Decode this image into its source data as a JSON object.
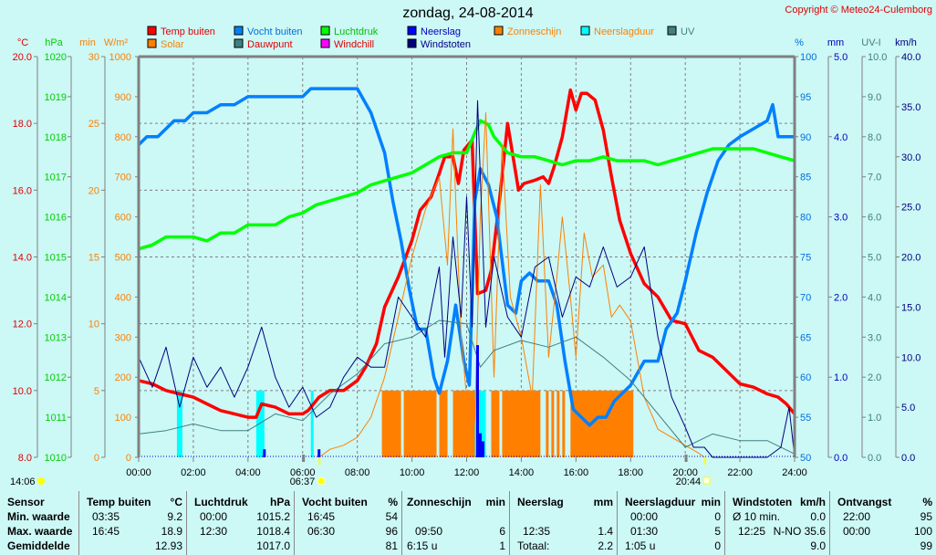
{
  "title": "zondag, 24-08-2014",
  "copyright": "Copyright © Meteo24-Culemborg",
  "legend": [
    {
      "label": "Temp buiten",
      "color": "#ff0000",
      "text_color": "#e00000"
    },
    {
      "label": "Solar",
      "color": "#ff8000",
      "text_color": "#ff8000"
    },
    {
      "label": "Vocht buiten",
      "color": "#0080ff",
      "text_color": "#0070e0"
    },
    {
      "label": "Dauwpunt",
      "color": "#408080",
      "text_color": "#e00000"
    },
    {
      "label": "Luchtdruk",
      "color": "#00ff00",
      "text_color": "#00c000"
    },
    {
      "label": "Windchill",
      "color": "#ff00ff",
      "text_color": "#e00000"
    },
    {
      "label": "Neerslag",
      "color": "#0000ff",
      "text_color": "#0000c0"
    },
    {
      "label": "Windstoten",
      "color": "#000080",
      "text_color": "#000080"
    },
    {
      "label": "Zonneschijn",
      "color": "#ff8000",
      "text_color": "#ff8000"
    },
    {
      "label": "Neerslagduur",
      "color": "#00ffff",
      "text_color": "#ff8000"
    },
    {
      "label": "UV",
      "color": "#408080",
      "text_color": "#408080"
    }
  ],
  "axes": {
    "temp": {
      "unit": "°C",
      "color": "#e00000",
      "ticks": [
        "20.0",
        "18.0",
        "16.0",
        "14.0",
        "12.0",
        "10.0",
        "8.0"
      ]
    },
    "pressure": {
      "unit": "hPa",
      "color": "#00d000",
      "ticks": [
        "1020",
        "1019",
        "1018",
        "1017",
        "1016",
        "1015",
        "1014",
        "1013",
        "1012",
        "1011",
        "1010"
      ]
    },
    "minutes": {
      "unit": "min",
      "color": "#ff8000",
      "ticks": [
        "30",
        "25",
        "20",
        "15",
        "10",
        "5",
        "0"
      ]
    },
    "solar": {
      "unit": "W/m²",
      "color": "#ff8000",
      "ticks": [
        "1000",
        "900",
        "800",
        "700",
        "600",
        "500",
        "400",
        "300",
        "200",
        "100",
        "0"
      ]
    },
    "humidity": {
      "unit": "%",
      "color": "#0070e0",
      "ticks": [
        "100",
        "95",
        "90",
        "85",
        "80",
        "75",
        "70",
        "65",
        "60",
        "55",
        "50"
      ]
    },
    "rain": {
      "unit": "mm",
      "color": "#0000c0",
      "ticks": [
        "5.0",
        "4.0",
        "3.0",
        "2.0",
        "1.0",
        "0.0"
      ]
    },
    "uv": {
      "unit": "UV-I",
      "color": "#408080",
      "ticks": [
        "10.0",
        "9.0",
        "8.0",
        "7.0",
        "6.0",
        "5.0",
        "4.0",
        "3.0",
        "2.0",
        "1.0",
        "0.0"
      ]
    },
    "wind": {
      "unit": "km/h",
      "color": "#000080",
      "ticks": [
        "40.0",
        "35.0",
        "30.0",
        "25.0",
        "20.0",
        "15.0",
        "10.0",
        "5.0",
        "0.0"
      ]
    },
    "time_ticks": [
      "00:00",
      "02:00",
      "04:00",
      "06:00",
      "08:00",
      "10:00",
      "12:00",
      "14:00",
      "16:00",
      "18:00",
      "20:00",
      "22:00",
      "24:00"
    ]
  },
  "daylight": {
    "daylength": "14:06",
    "sunrise": "06:37",
    "sunset": "20:44"
  },
  "chart_data": {
    "type": "line",
    "title": "zondag, 24-08-2014",
    "xlabel": "",
    "ylabel": "",
    "xlim": [
      0,
      24
    ],
    "grid": true,
    "series": [
      {
        "name": "Temp buiten",
        "unit": "°C",
        "ylim": [
          8,
          20
        ],
        "x": [
          0,
          0.5,
          1,
          1.5,
          2,
          2.5,
          3,
          3.5,
          4,
          4.3,
          4.5,
          5,
          5.5,
          6,
          6.2,
          6.6,
          7,
          7.5,
          8,
          8.3,
          8.7,
          9,
          9.5,
          10,
          10.3,
          10.7,
          11,
          11.2,
          11.5,
          11.7,
          11.9,
          12.2,
          12.4,
          12.7,
          12.9,
          13.2,
          13.5,
          13.9,
          14.1,
          14.5,
          14.8,
          15,
          15.2,
          15.5,
          15.8,
          16,
          16.2,
          16.4,
          16.7,
          17,
          17.3,
          17.6,
          18,
          18.5,
          19,
          19.5,
          20,
          20.5,
          21,
          21.5,
          22,
          22.5,
          23,
          23.4,
          23.7,
          24
        ],
        "y": [
          10.3,
          10.2,
          10.0,
          9.9,
          9.8,
          9.6,
          9.4,
          9.3,
          9.2,
          9.2,
          9.6,
          9.5,
          9.3,
          9.3,
          9.4,
          9.8,
          10.0,
          10.0,
          10.3,
          10.7,
          11.4,
          12.5,
          13.4,
          14.5,
          15.4,
          15.8,
          16.5,
          17.0,
          17.0,
          16.2,
          17.2,
          17.5,
          12.9,
          13.0,
          13.6,
          15.7,
          18.0,
          16.0,
          16.2,
          16.3,
          16.4,
          16.2,
          16.7,
          17.6,
          19.0,
          18.4,
          18.9,
          18.9,
          18.7,
          17.8,
          16.4,
          15.1,
          14.1,
          13.2,
          12.8,
          12.1,
          12.0,
          11.2,
          11.0,
          10.6,
          10.2,
          10.1,
          9.9,
          9.8,
          9.6,
          9.3
        ]
      },
      {
        "name": "Vocht buiten",
        "unit": "%",
        "ylim": [
          50,
          100
        ],
        "x": [
          0,
          0.3,
          0.7,
          1,
          1.3,
          1.7,
          2,
          2.5,
          3,
          3.5,
          4,
          5,
          6,
          6.3,
          6.7,
          7,
          8,
          8.5,
          9,
          9.3,
          9.6,
          9.9,
          10.2,
          10.5,
          10.8,
          11,
          11.3,
          11.6,
          11.9,
          12.1,
          12.3,
          12.5,
          12.8,
          13.1,
          13.5,
          13.8,
          14,
          14.3,
          14.6,
          15,
          15.3,
          15.6,
          15.9,
          16.2,
          16.5,
          16.8,
          17.1,
          17.4,
          17.7,
          18.0,
          18.5,
          19,
          19.3,
          19.7,
          20,
          20.4,
          20.8,
          21.2,
          21.6,
          22,
          22.5,
          23,
          23.2,
          23.4,
          24
        ],
        "y": [
          89,
          90,
          90,
          91,
          92,
          92,
          93,
          93,
          94,
          94,
          95,
          95,
          95,
          96,
          96,
          96,
          96,
          93,
          88,
          82,
          77,
          71,
          66,
          66,
          60,
          58,
          62,
          69,
          62,
          59,
          82,
          86,
          84,
          80,
          69,
          68,
          72,
          73,
          72,
          72,
          69,
          62,
          56,
          55,
          54,
          55,
          55,
          57,
          58,
          59,
          62,
          62,
          66,
          68,
          72,
          78,
          83,
          87,
          89,
          90,
          91,
          92,
          94,
          90,
          90
        ]
      },
      {
        "name": "Luchtdruk",
        "unit": "hPa",
        "ylim": [
          1010,
          1020
        ],
        "x": [
          0,
          0.5,
          1,
          1.5,
          2,
          2.5,
          3,
          3.5,
          4,
          4.5,
          5,
          5.5,
          6,
          6.5,
          7,
          7.5,
          8,
          8.5,
          9,
          9.5,
          10,
          10.5,
          11,
          11.5,
          12,
          12.3,
          12.5,
          12.8,
          13,
          13.5,
          14,
          14.5,
          15,
          15.5,
          16,
          16.5,
          17,
          17.5,
          18,
          18.5,
          19,
          19.5,
          20,
          20.5,
          21,
          21.5,
          22,
          22.5,
          23,
          23.5,
          24
        ],
        "y": [
          1015.2,
          1015.3,
          1015.5,
          1015.5,
          1015.5,
          1015.4,
          1015.6,
          1015.6,
          1015.8,
          1015.8,
          1015.8,
          1016.0,
          1016.1,
          1016.3,
          1016.4,
          1016.5,
          1016.6,
          1016.8,
          1016.9,
          1017.0,
          1017.1,
          1017.3,
          1017.5,
          1017.6,
          1017.6,
          1018.1,
          1018.4,
          1018.3,
          1018.0,
          1017.6,
          1017.5,
          1017.5,
          1017.4,
          1017.3,
          1017.4,
          1017.4,
          1017.5,
          1017.4,
          1017.4,
          1017.4,
          1017.3,
          1017.4,
          1017.5,
          1017.6,
          1017.7,
          1017.7,
          1017.7,
          1017.7,
          1017.6,
          1017.5,
          1017.4
        ]
      },
      {
        "name": "Solar",
        "unit": "W/m²",
        "ylim": [
          0,
          1000
        ],
        "x": [
          6.6,
          7,
          7.5,
          8,
          8.5,
          9,
          9.5,
          10,
          10.5,
          11,
          11.3,
          11.5,
          11.8,
          12,
          12.3,
          12.5,
          12.7,
          13,
          13.3,
          13.6,
          14,
          14.4,
          14.7,
          15,
          15.3,
          15.5,
          15.8,
          16,
          16.3,
          16.6,
          17,
          17.3,
          17.6,
          18,
          18.5,
          19,
          19.5,
          20,
          20.5,
          20.7
        ],
        "y": [
          0,
          20,
          30,
          50,
          100,
          200,
          350,
          500,
          620,
          700,
          480,
          820,
          300,
          150,
          90,
          600,
          860,
          200,
          780,
          400,
          300,
          150,
          680,
          250,
          450,
          600,
          400,
          250,
          560,
          450,
          480,
          350,
          380,
          340,
          150,
          70,
          50,
          30,
          10,
          0
        ]
      },
      {
        "name": "Dauwpunt",
        "unit": "°C",
        "ylim": [
          8,
          20
        ],
        "x": [
          0,
          1,
          2,
          3,
          4,
          5,
          6,
          7,
          8,
          9,
          10,
          11,
          12,
          12.5,
          13,
          14,
          15,
          16,
          17,
          18,
          19,
          20,
          21,
          22,
          23,
          24
        ],
        "y": [
          8.7,
          8.8,
          9.0,
          8.8,
          8.8,
          9.3,
          9.1,
          9.9,
          10.5,
          11.4,
          11.6,
          12.1,
          12.0,
          10.7,
          11.2,
          11.5,
          11.3,
          11.6,
          11.0,
          10.3,
          9.3,
          8.3,
          8.7,
          8.5,
          8.5,
          8.1
        ]
      },
      {
        "name": "Windstoten",
        "unit": "km/h",
        "ylim": [
          0,
          40
        ],
        "x": [
          0,
          0.5,
          1,
          1.5,
          2,
          2.5,
          3,
          3.5,
          4,
          4.5,
          5,
          5.5,
          6,
          6.5,
          7,
          7.5,
          8,
          8.5,
          9,
          9.5,
          10,
          10.5,
          11,
          11.2,
          11.5,
          11.8,
          12,
          12.2,
          12.4,
          12.7,
          13,
          13.5,
          14,
          14.5,
          15,
          15.5,
          16,
          16.5,
          17,
          17.5,
          18,
          18.5,
          19,
          19.5,
          20,
          20.3,
          20.7,
          21,
          21.5,
          22,
          22.5,
          23,
          23.5,
          23.8,
          24
        ],
        "y": [
          10,
          7,
          11,
          5,
          10,
          7,
          9,
          6,
          9,
          13,
          8,
          5,
          7,
          4,
          5,
          8,
          10,
          9,
          9,
          16,
          14,
          12,
          19,
          10,
          22,
          14,
          26,
          13,
          35.6,
          13,
          20,
          14,
          12,
          19,
          20,
          14,
          18,
          17,
          21,
          17,
          18,
          21,
          12,
          6,
          3,
          1,
          1,
          0,
          0,
          0,
          0,
          0,
          1,
          5,
          0
        ]
      },
      {
        "name": "Neerslag",
        "unit": "mm",
        "ylim": [
          0,
          5
        ],
        "x": [
          4.6,
          6.6,
          12.4,
          12.5,
          12.6
        ],
        "y": [
          0.1,
          0.1,
          1.4,
          0.3,
          0.2
        ]
      }
    ],
    "bars": [
      {
        "name": "Zonneschijn",
        "unit": "min",
        "ylim": [
          0,
          30
        ],
        "intervals": [
          [
            8.9,
            9.6
          ],
          [
            9.7,
            10.9
          ],
          [
            11.0,
            11.3
          ],
          [
            11.5,
            12.3
          ],
          [
            12.9,
            13.2
          ],
          [
            13.3,
            14.7
          ],
          [
            14.9,
            15.0
          ],
          [
            15.1,
            15.2
          ],
          [
            15.3,
            15.4
          ],
          [
            15.5,
            15.6
          ],
          [
            15.8,
            18.1
          ]
        ],
        "value": 5
      },
      {
        "name": "Neerslagduur",
        "unit": "min",
        "ylim": [
          0,
          30
        ],
        "intervals": [
          [
            1.4,
            1.6
          ],
          [
            4.3,
            4.6
          ],
          [
            6.3,
            6.4
          ],
          [
            12.3,
            12.7
          ]
        ],
        "value": 5
      }
    ]
  },
  "stats": {
    "sensor": {
      "header": "Sensor",
      "rows": [
        "Min. waarde",
        "Max. waarde",
        "Gemiddelde"
      ]
    },
    "temp": {
      "header": "Temp buiten",
      "unit": "°C",
      "min_time": "03:35",
      "min": "9.2",
      "max_time": "16:45",
      "max": "18.9",
      "avg": "12.93"
    },
    "pressure": {
      "header": "Luchtdruk",
      "unit": "hPa",
      "min_time": "00:00",
      "min": "1015.2",
      "max_time": "12:30",
      "max": "1018.4",
      "avg": "1017.0"
    },
    "humidity": {
      "header": "Vocht buiten",
      "unit": "%",
      "min_time": "16:45",
      "min": "54",
      "max_time": "06:30",
      "max": "96",
      "avg": "81"
    },
    "sunshine": {
      "header": "Zonneschijn",
      "unit": "min",
      "max_time": "09:50",
      "max": "6",
      "avg_time": "6:15 u",
      "avg": "1"
    },
    "rain": {
      "header": "Neerslag",
      "unit": "mm",
      "max_time": "12:35",
      "max": "1.4",
      "total_label": "Totaal:",
      "total": "2.2"
    },
    "rainduration": {
      "header": "Neerslagduur",
      "unit": "min",
      "min_time": "00:00",
      "min": "0",
      "max_time": "01:30",
      "max": "5",
      "avg_time": "1:05 u",
      "avg": "0"
    },
    "wind": {
      "header": "Windstoten",
      "unit": "km/h",
      "min_label": "Ø 10 min.",
      "min": "0.0",
      "max_time": "12:25",
      "max": "N-NO 35.6",
      "avg": "9.0"
    },
    "reception": {
      "header": "Ontvangst",
      "unit": "%",
      "min_time": "22:00",
      "min": "95",
      "max_time": "00:00",
      "max": "100",
      "avg": "99"
    }
  }
}
